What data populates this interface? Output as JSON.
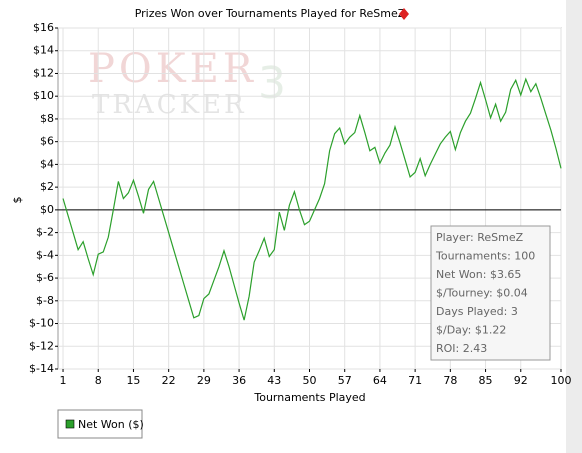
{
  "chart_data": {
    "type": "line",
    "title": "Prizes Won over Tournaments Played for ReSmeZ",
    "xlabel": "Tournaments Played",
    "ylabel": "$",
    "watermark": [
      "POKER",
      "TRACKER",
      "3"
    ],
    "x": [
      1,
      2,
      3,
      4,
      5,
      6,
      7,
      8,
      9,
      10,
      11,
      12,
      13,
      14,
      15,
      16,
      17,
      18,
      19,
      20,
      21,
      22,
      23,
      24,
      25,
      26,
      27,
      28,
      29,
      30,
      31,
      32,
      33,
      34,
      35,
      36,
      37,
      38,
      39,
      40,
      41,
      42,
      43,
      44,
      45,
      46,
      47,
      48,
      49,
      50,
      51,
      52,
      53,
      54,
      55,
      56,
      57,
      58,
      59,
      60,
      61,
      62,
      63,
      64,
      65,
      66,
      67,
      68,
      69,
      70,
      71,
      72,
      73,
      74,
      75,
      76,
      77,
      78,
      79,
      80,
      81,
      82,
      83,
      84,
      85,
      86,
      87,
      88,
      89,
      90,
      91,
      92,
      93,
      94,
      95,
      96,
      97,
      98,
      99,
      100
    ],
    "series": [
      {
        "name": "Net Won ($)",
        "color": "#2ca02c",
        "values": [
          1.0,
          -0.5,
          -2,
          -3.5,
          -2.8,
          -4.3,
          -5.7,
          -3.9,
          -3.7,
          -2.4,
          0,
          2.5,
          1.0,
          1.5,
          2.6,
          1.2,
          -0.3,
          1.8,
          2.5,
          1.0,
          -0.5,
          -2,
          -3.5,
          -5,
          -6.5,
          -8,
          -9.5,
          -9.3,
          -7.8,
          -7.4,
          -6.2,
          -5,
          -3.6,
          -5,
          -6.6,
          -8.2,
          -9.7,
          -7.6,
          -4.6,
          -3.6,
          -2.5,
          -4.1,
          -3.5,
          -0.2,
          -1.8,
          0.4,
          1.6,
          0,
          -1.3,
          -1,
          0,
          1,
          2.3,
          5.2,
          6.7,
          7.2,
          5.8,
          6.4,
          6.8,
          8.3,
          6.8,
          5.2,
          5.5,
          4.1,
          5,
          5.7,
          7.3,
          5.9,
          4.4,
          2.9,
          3.3,
          4.5,
          3.0,
          4,
          4.9,
          5.8,
          6.4,
          6.9,
          5.3,
          6.8,
          7.8,
          8.5,
          9.8,
          11.2,
          9.7,
          8.1,
          9.3,
          7.8,
          8.6,
          10.6,
          11.4,
          10.1,
          11.5,
          10.4,
          11.1,
          9.8,
          8.4,
          7.0,
          5.4,
          3.65
        ]
      }
    ],
    "xlim": [
      0,
      100
    ],
    "xticks": [
      1,
      8,
      15,
      22,
      29,
      36,
      43,
      50,
      57,
      64,
      71,
      78,
      85,
      92,
      100
    ],
    "ylim": [
      -14,
      16
    ],
    "yticks": [
      {
        "value": -14,
        "label": "$-14"
      },
      {
        "value": -12,
        "label": "$-12"
      },
      {
        "value": -10,
        "label": "$-10"
      },
      {
        "value": -8,
        "label": "$-8"
      },
      {
        "value": -6,
        "label": "$-6"
      },
      {
        "value": -4,
        "label": "$-4"
      },
      {
        "value": -2,
        "label": "$-2"
      },
      {
        "value": 0,
        "label": "$0"
      },
      {
        "value": 2,
        "label": "$2"
      },
      {
        "value": 4,
        "label": "$4"
      },
      {
        "value": 6,
        "label": "$6"
      },
      {
        "value": 8,
        "label": "$8"
      },
      {
        "value": 10,
        "label": "$10"
      },
      {
        "value": 12,
        "label": "$12"
      },
      {
        "value": 14,
        "label": "$14"
      },
      {
        "value": 16,
        "label": "$16"
      }
    ],
    "grid": true,
    "stats": [
      "Player: ReSmeZ",
      "Tournaments: 100",
      "Net Won: $3.65",
      "$/Tourney: $0.04",
      "Days Played: 3",
      "$/Day: $1.22",
      "ROI: 2.43"
    ]
  }
}
